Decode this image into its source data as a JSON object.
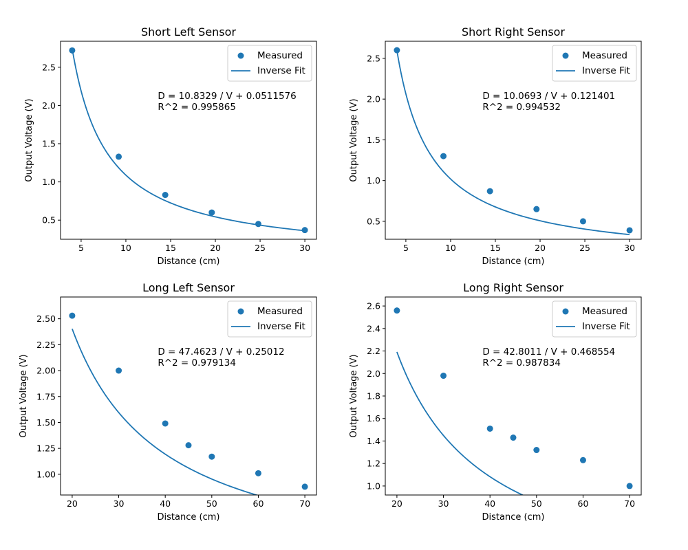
{
  "chart_data": [
    {
      "type": "scatter",
      "title": "Short Left Sensor",
      "xlabel": "Distance (cm)",
      "ylabel": "Output Voltage (V)",
      "xlim": [
        2.7,
        31.3
      ],
      "ylim": [
        0.25,
        2.84
      ],
      "xticks": [
        5,
        10,
        15,
        20,
        25,
        30
      ],
      "yticks": [
        0.5,
        1.0,
        1.5,
        2.0,
        2.5
      ],
      "ytick_labels": [
        "0.5",
        "1.0",
        "1.5",
        "2.0",
        "2.5"
      ],
      "series": [
        {
          "name": "Measured",
          "kind": "scatter",
          "x": [
            4,
            9.2,
            14.4,
            19.6,
            24.8,
            30
          ],
          "y": [
            2.72,
            1.33,
            0.83,
            0.6,
            0.45,
            0.37
          ]
        },
        {
          "name": "Inverse Fit",
          "kind": "fit",
          "a": 10.8329,
          "b": 0.0511576,
          "x_range": [
            4,
            30
          ]
        }
      ],
      "annotation": [
        "D = 10.8329 / V + 0.0511576",
        "R^2 = 0.995865"
      ],
      "legend": "top-right",
      "grid": false
    },
    {
      "type": "scatter",
      "title": "Short Right Sensor",
      "xlabel": "Distance (cm)",
      "ylabel": "Output Voltage (V)",
      "xlim": [
        2.7,
        31.3
      ],
      "ylim": [
        0.28,
        2.71
      ],
      "xticks": [
        5,
        10,
        15,
        20,
        25,
        30
      ],
      "yticks": [
        0.5,
        1.0,
        1.5,
        2.0,
        2.5
      ],
      "ytick_labels": [
        "0.5",
        "1.0",
        "1.5",
        "2.0",
        "2.5"
      ],
      "series": [
        {
          "name": "Measured",
          "kind": "scatter",
          "x": [
            4,
            9.2,
            14.4,
            19.6,
            24.8,
            30
          ],
          "y": [
            2.6,
            1.3,
            0.87,
            0.65,
            0.5,
            0.39
          ]
        },
        {
          "name": "Inverse Fit",
          "kind": "fit",
          "a": 10.0693,
          "b": 0.121401,
          "x_range": [
            4,
            30
          ]
        }
      ],
      "annotation": [
        "D = 10.0693 / V + 0.121401",
        "R^2 = 0.994532"
      ],
      "legend": "top-right",
      "grid": false
    },
    {
      "type": "scatter",
      "title": "Long Left Sensor",
      "xlabel": "Distance (cm)",
      "ylabel": "Output Voltage (V)",
      "xlim": [
        17.5,
        72.5
      ],
      "ylim": [
        0.8,
        2.71
      ],
      "xticks": [
        20,
        30,
        40,
        50,
        60,
        70
      ],
      "yticks": [
        1.0,
        1.25,
        1.5,
        1.75,
        2.0,
        2.25,
        2.5
      ],
      "ytick_labels": [
        "1.00",
        "1.25",
        "1.50",
        "1.75",
        "2.00",
        "2.25",
        "2.50"
      ],
      "series": [
        {
          "name": "Measured",
          "kind": "scatter",
          "x": [
            20,
            30,
            40,
            45,
            50,
            60,
            70
          ],
          "y": [
            2.53,
            2.0,
            1.49,
            1.28,
            1.17,
            1.01,
            0.88
          ]
        },
        {
          "name": "Inverse Fit",
          "kind": "fit",
          "a": 47.4623,
          "b": 0.25012,
          "x_range": [
            20,
            70
          ]
        }
      ],
      "annotation": [
        "D = 47.4623 / V + 0.25012",
        "R^2 = 0.979134"
      ],
      "legend": "top-right",
      "grid": false
    },
    {
      "type": "scatter",
      "title": "Long Right Sensor",
      "xlabel": "Distance (cm)",
      "ylabel": "Output Voltage (V)",
      "xlim": [
        17.5,
        72.5
      ],
      "ylim": [
        0.92,
        2.68
      ],
      "xticks": [
        20,
        30,
        40,
        50,
        60,
        70
      ],
      "yticks": [
        1.0,
        1.2,
        1.4,
        1.6,
        1.8,
        2.0,
        2.2,
        2.4,
        2.6
      ],
      "ytick_labels": [
        "1.0",
        "1.2",
        "1.4",
        "1.6",
        "1.8",
        "2.0",
        "2.2",
        "2.4",
        "2.6"
      ],
      "series": [
        {
          "name": "Measured",
          "kind": "scatter",
          "x": [
            20,
            30,
            40,
            45,
            50,
            60,
            70
          ],
          "y": [
            2.56,
            1.98,
            1.51,
            1.43,
            1.32,
            1.23,
            1.0
          ]
        },
        {
          "name": "Inverse Fit",
          "kind": "fit",
          "a": 42.8011,
          "b": 0.468554,
          "x_range": [
            20,
            70
          ]
        }
      ],
      "annotation": [
        "D = 42.8011 / V + 0.468554",
        "R^2 = 0.987834"
      ],
      "legend": "top-right",
      "grid": false
    }
  ],
  "colors": {
    "series": "#1f77b4",
    "axes": "#000000",
    "legend_border": "#cccccc"
  }
}
